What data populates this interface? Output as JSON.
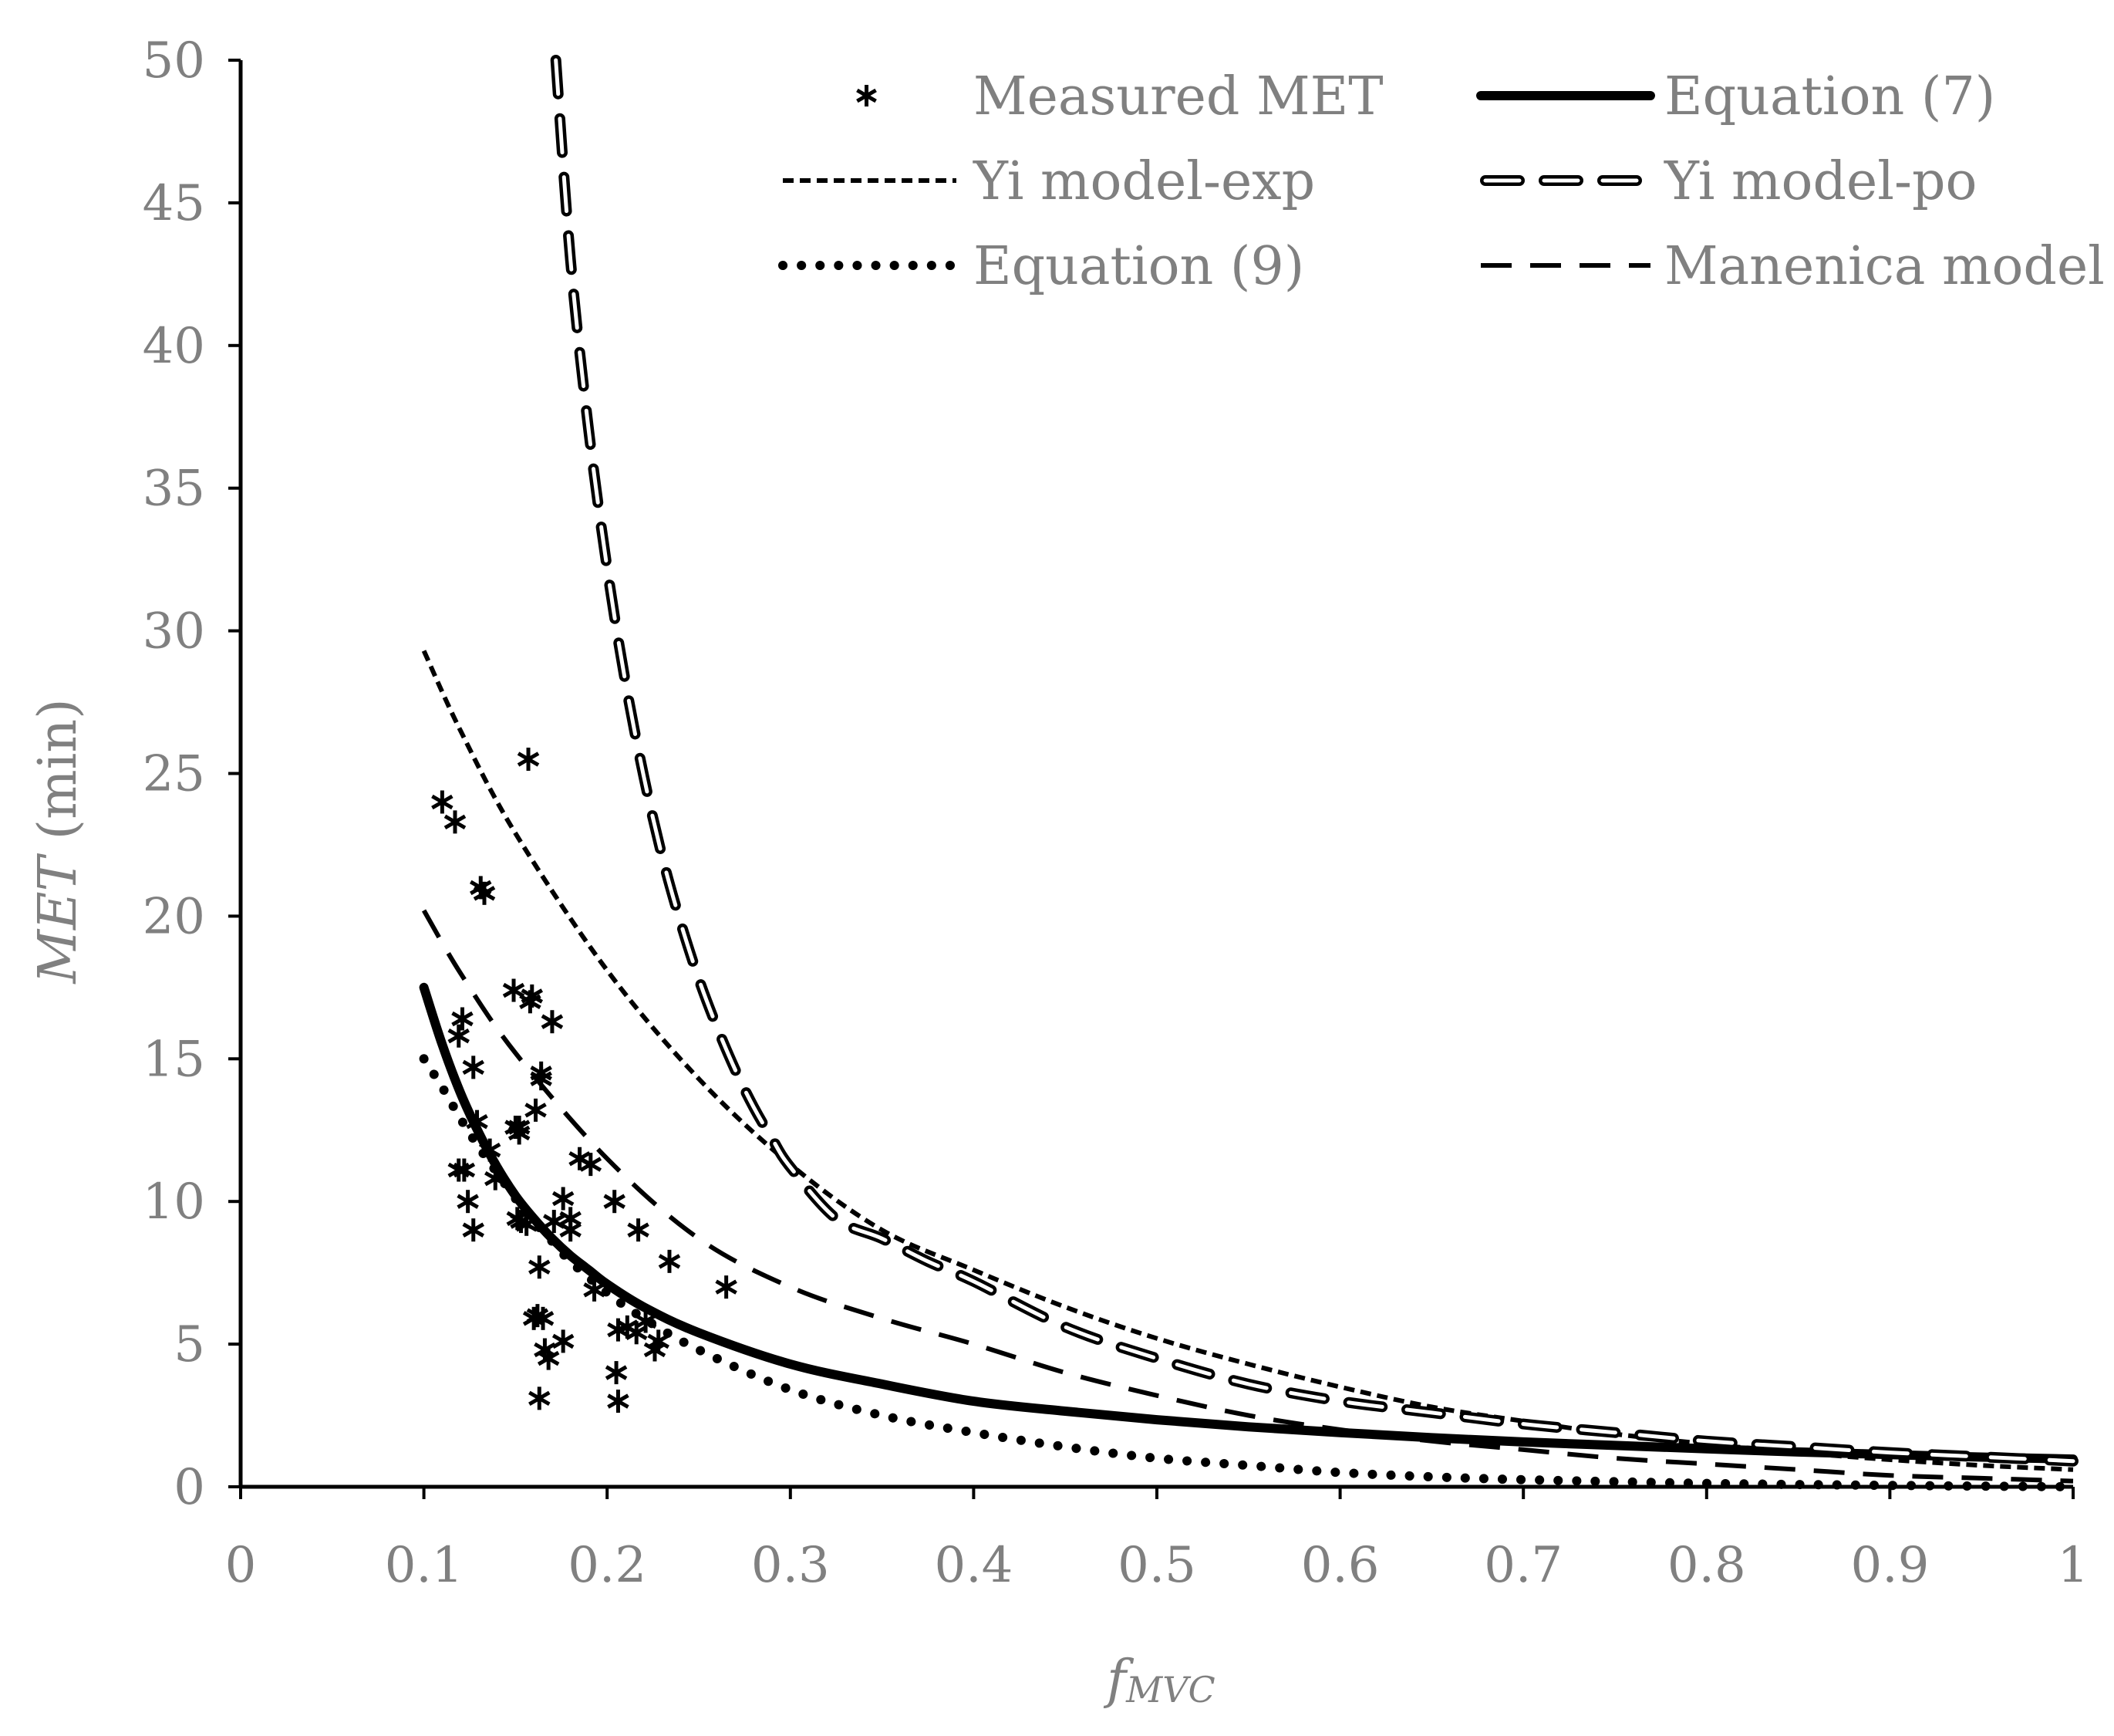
{
  "chart_data": {
    "type": "scatter",
    "title": "",
    "xlabel": {
      "main": "f",
      "sub": "MVC"
    },
    "ylabel": {
      "italic": "MET",
      "rest": " (min)"
    },
    "xlim": [
      0,
      1
    ],
    "ylim": [
      0,
      50
    ],
    "xticks": [
      0,
      0.1,
      0.2,
      0.3,
      0.4,
      0.5,
      0.6,
      0.7,
      0.8,
      0.9,
      1
    ],
    "yticks": [
      0,
      5,
      10,
      15,
      20,
      25,
      30,
      35,
      40,
      45,
      50
    ],
    "xtick_labels": [
      "0",
      "0.1",
      "0.2",
      "0.3",
      "0.4",
      "0.5",
      "0.6",
      "0.7",
      "0.8",
      "0.9",
      "1"
    ],
    "ytick_labels": [
      "0",
      "5",
      "10",
      "15",
      "20",
      "25",
      "30",
      "35",
      "40",
      "45",
      "50"
    ],
    "grid": false,
    "legend_position": "top-right",
    "colors": {
      "series": "#000000",
      "text": "#808080",
      "axis": "#000000"
    },
    "series": [
      {
        "name": "Measured MET",
        "style": "markers",
        "x": [
          0.11,
          0.117,
          0.119,
          0.119,
          0.121,
          0.122,
          0.124,
          0.127,
          0.127,
          0.129,
          0.131,
          0.133,
          0.136,
          0.139,
          0.149,
          0.15,
          0.151,
          0.152,
          0.152,
          0.153,
          0.156,
          0.157,
          0.158,
          0.159,
          0.16,
          0.161,
          0.162,
          0.163,
          0.163,
          0.164,
          0.164,
          0.165,
          0.166,
          0.168,
          0.17,
          0.171,
          0.176,
          0.176,
          0.18,
          0.18,
          0.185,
          0.191,
          0.193,
          0.204,
          0.205,
          0.206,
          0.206,
          0.211,
          0.216,
          0.217,
          0.221,
          0.226,
          0.228,
          0.234,
          0.265
        ],
        "y": [
          24.0,
          23.3,
          11.1,
          15.8,
          16.4,
          11.1,
          10.0,
          9.0,
          14.7,
          12.8,
          21.0,
          20.8,
          11.8,
          10.8,
          17.4,
          12.6,
          9.4,
          12.6,
          12.4,
          9.3,
          9.2,
          25.5,
          17.0,
          17.2,
          5.9,
          13.2,
          6.0,
          3.1,
          7.7,
          14.5,
          14.3,
          5.9,
          4.8,
          4.5,
          16.3,
          9.3,
          10.1,
          5.1,
          9.4,
          9.0,
          11.5,
          11.3,
          6.9,
          10.0,
          4.0,
          3.0,
          5.5,
          5.6,
          5.4,
          9.0,
          5.8,
          4.8,
          5.1,
          7.9,
          7.0
        ]
      },
      {
        "name": "Equation (7)",
        "style": "thick-solid",
        "x": [
          0.1,
          0.11,
          0.12,
          0.13,
          0.14,
          0.15,
          0.16,
          0.17,
          0.18,
          0.19,
          0.2,
          0.22,
          0.25,
          0.3,
          0.35,
          0.4,
          0.45,
          0.5,
          0.55,
          0.6,
          0.65,
          0.7,
          0.75,
          0.8,
          0.85,
          0.9,
          0.95,
          1.0
        ],
        "y": [
          17.5,
          15.5,
          13.8,
          12.4,
          11.2,
          10.2,
          9.4,
          8.7,
          8.1,
          7.6,
          7.1,
          6.3,
          5.4,
          4.3,
          3.6,
          3.0,
          2.65,
          2.35,
          2.1,
          1.9,
          1.72,
          1.57,
          1.45,
          1.33,
          1.22,
          1.13,
          1.04,
          0.97
        ]
      },
      {
        "name": "Yi model-exp",
        "style": "short-dash",
        "x": [
          0.1,
          0.12,
          0.15,
          0.2,
          0.25,
          0.3,
          0.35,
          0.4,
          0.45,
          0.5,
          0.55,
          0.6,
          0.65,
          0.7,
          0.75,
          0.8,
          0.85,
          0.9,
          0.95,
          1.0
        ],
        "y": [
          29.3,
          26.5,
          22.9,
          18.1,
          14.3,
          11.3,
          9.0,
          7.6,
          6.3,
          5.2,
          4.3,
          3.5,
          2.8,
          2.3,
          1.85,
          1.5,
          1.2,
          0.95,
          0.75,
          0.6
        ]
      },
      {
        "name": "Yi model-po",
        "style": "hollow-dash",
        "x": [
          0.172,
          0.18,
          0.19,
          0.2,
          0.21,
          0.22,
          0.23,
          0.24,
          0.25,
          0.26,
          0.27,
          0.28,
          0.29,
          0.3,
          0.325,
          0.35,
          0.375,
          0.4,
          0.45,
          0.5,
          0.55,
          0.6,
          0.65,
          0.7,
          0.75,
          0.8,
          0.85,
          0.9,
          0.95,
          1.0
        ],
        "y": [
          50.0,
          43.0,
          37.0,
          32.2,
          28.2,
          24.9,
          22.1,
          19.8,
          17.8,
          16.1,
          14.6,
          13.3,
          12.2,
          11.2,
          9.4,
          8.7,
          7.9,
          7.2,
          5.6,
          4.5,
          3.6,
          3.0,
          2.6,
          2.2,
          1.9,
          1.6,
          1.4,
          1.2,
          1.05,
          0.9
        ]
      },
      {
        "name": "Equation (9)",
        "style": "dotted",
        "x": [
          0.1,
          0.11,
          0.12,
          0.13,
          0.14,
          0.15,
          0.16,
          0.17,
          0.18,
          0.2,
          0.22,
          0.25,
          0.3,
          0.35,
          0.4,
          0.45,
          0.5,
          0.55,
          0.6,
          0.65,
          0.7,
          0.8,
          0.9,
          1.0
        ],
        "y": [
          15.0,
          14.0,
          12.9,
          11.9,
          11.0,
          10.1,
          9.3,
          8.6,
          7.9,
          6.8,
          5.9,
          4.8,
          3.4,
          2.5,
          1.9,
          1.4,
          1.0,
          0.75,
          0.5,
          0.35,
          0.25,
          0.12,
          0.05,
          0.0
        ]
      },
      {
        "name": "Manenica model",
        "style": "long-dash",
        "x": [
          0.1,
          0.12,
          0.15,
          0.2,
          0.25,
          0.3,
          0.35,
          0.4,
          0.45,
          0.5,
          0.55,
          0.6,
          0.65,
          0.7,
          0.75,
          0.8,
          0.85,
          0.9,
          0.95,
          1.0
        ],
        "y": [
          20.2,
          18.0,
          15.2,
          11.5,
          8.7,
          7.0,
          5.9,
          5.0,
          4.0,
          3.2,
          2.5,
          2.0,
          1.6,
          1.3,
          1.0,
          0.8,
          0.6,
          0.4,
          0.3,
          0.2
        ]
      }
    ]
  }
}
